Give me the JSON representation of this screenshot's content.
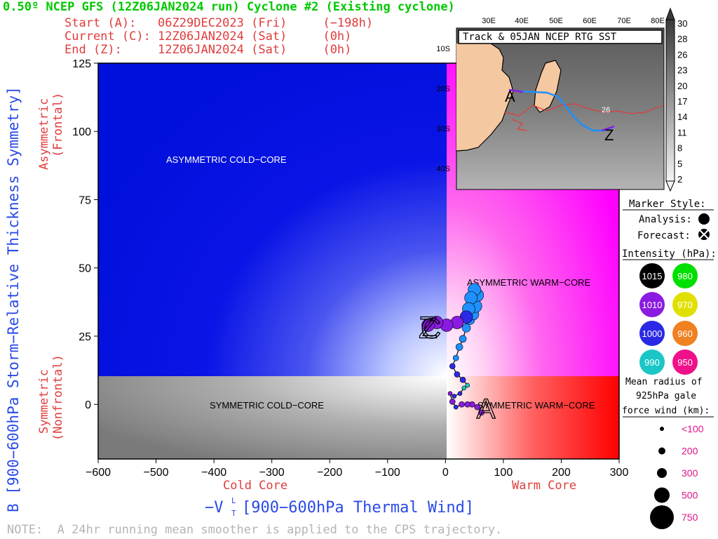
{
  "header": {
    "title": "0.50º NCEP GFS (12Z06JAN2024 run) Cyclone #2 (Existing cyclone)",
    "start_line": "Start (A):   06Z29DEC2023 (Fri)     (−198h)",
    "current_line": "Current (C): 12Z06JAN2024 (Sat)     (0h)",
    "end_line": "End (Z):     12Z06JAN2024 (Sat)     (0h)"
  },
  "axes": {
    "ylabel": "B [900−600hPa Storm−Relative Thickness Symmetry]",
    "xlabel": "−V  [900−600hPa Thermal Wind]",
    "xlabel_sub_top": "L",
    "xlabel_sub_bottom": "T",
    "asym_label_1": "Asymmetric",
    "asym_label_2": "(Frontal)",
    "sym_label_1": "Symmetric",
    "sym_label_2": "(Nonfrontal)",
    "cold_core": "Cold Core",
    "warm_core": "Warm Core"
  },
  "regions": {
    "asym_cold": "ASYMMETRIC COLD−CORE",
    "asym_warm": "ASYMMETRIC WARM−CORE",
    "sym_cold": "SYMMETRIC COLD−CORE",
    "sym_warm": "SYMMETRIC WARM−CORE"
  },
  "chart_data": {
    "type": "scatter",
    "xlim": [
      -600,
      300
    ],
    "ylim": [
      -20,
      125
    ],
    "x_ticks": [
      -600,
      -500,
      -400,
      -300,
      -200,
      -100,
      0,
      100,
      200,
      300
    ],
    "y_ticks": [
      0,
      25,
      50,
      75,
      100,
      125
    ],
    "track": [
      {
        "x": 62,
        "y": -3,
        "color": "#8a1be0",
        "r": 4
      },
      {
        "x": 55,
        "y": -1,
        "color": "#8a1be0",
        "r": 4
      },
      {
        "x": 46,
        "y": 0,
        "color": "#8a1be0",
        "r": 4
      },
      {
        "x": 38,
        "y": 0,
        "color": "#8a1be0",
        "r": 4
      },
      {
        "x": 28,
        "y": 0,
        "color": "#8a1be0",
        "r": 4
      },
      {
        "x": 18,
        "y": -1,
        "color": "#2a2ae6",
        "r": 3
      },
      {
        "x": 12,
        "y": 1,
        "color": "#8a1be0",
        "r": 4
      },
      {
        "x": 8,
        "y": 4,
        "color": "#8a1be0",
        "r": 3
      },
      {
        "x": 15,
        "y": 3,
        "color": "#2a2ae6",
        "r": 3
      },
      {
        "x": 25,
        "y": 4,
        "color": "#2a2ae6",
        "r": 3
      },
      {
        "x": 32,
        "y": 6,
        "color": "#1ac6c6",
        "r": 3
      },
      {
        "x": 38,
        "y": 7,
        "color": "#1ac6c6",
        "r": 3
      },
      {
        "x": 30,
        "y": 9,
        "color": "#2a2ae6",
        "r": 4
      },
      {
        "x": 20,
        "y": 11,
        "color": "#2a2ae6",
        "r": 4
      },
      {
        "x": 12,
        "y": 14,
        "color": "#2a2ae6",
        "r": 4
      },
      {
        "x": 18,
        "y": 17,
        "color": "#1e90ff",
        "r": 4
      },
      {
        "x": 24,
        "y": 21,
        "color": "#1e90ff",
        "r": 5
      },
      {
        "x": 30,
        "y": 24,
        "color": "#1e90ff",
        "r": 5
      },
      {
        "x": 36,
        "y": 28,
        "color": "#1e90ff",
        "r": 6
      },
      {
        "x": 42,
        "y": 31,
        "color": "#1e90ff",
        "r": 7
      },
      {
        "x": 48,
        "y": 33,
        "color": "#1e90ff",
        "r": 8
      },
      {
        "x": 52,
        "y": 36,
        "color": "#1e90ff",
        "r": 9
      },
      {
        "x": 55,
        "y": 40,
        "color": "#1e90ff",
        "r": 9
      },
      {
        "x": 50,
        "y": 42,
        "color": "#1e90ff",
        "r": 9
      },
      {
        "x": 44,
        "y": 39,
        "color": "#1e90ff",
        "r": 9
      },
      {
        "x": 40,
        "y": 35,
        "color": "#1e90ff",
        "r": 9
      },
      {
        "x": 36,
        "y": 32,
        "color": "#2a2ae6",
        "r": 9
      },
      {
        "x": 20,
        "y": 30,
        "color": "#8a1be0",
        "r": 9
      },
      {
        "x": 2,
        "y": 29,
        "color": "#8a1be0",
        "r": 9
      },
      {
        "x": -15,
        "y": 30,
        "color": "#8a1be0",
        "r": 9
      },
      {
        "x": -30,
        "y": 29,
        "color": "#8a1be0",
        "r": 9
      }
    ],
    "start_marker": {
      "label": "A",
      "x": 70,
      "y": -2
    },
    "end_marker": {
      "label": "Z",
      "x": -30,
      "y": 28
    },
    "current_marker": {
      "label": "C",
      "x": -30,
      "y": 28
    }
  },
  "inset": {
    "title": "Track & 05JAN NCEP RTG SST",
    "lon_labels": [
      "30E",
      "40E",
      "50E",
      "60E",
      "70E",
      "80E"
    ],
    "lat_labels": [
      "10S",
      "20S",
      "30S",
      "40S"
    ],
    "contour_label": "26",
    "colorbar": [
      "30",
      "28",
      "26",
      "23",
      "20",
      "17",
      "14",
      "11",
      "8",
      "5",
      "2"
    ]
  },
  "legend": {
    "marker_style": "Marker Style:",
    "analysis": "Analysis:",
    "forecast": "Forecast:",
    "intensity_title": "Intensity (hPa):",
    "intensity": [
      {
        "label": "1015",
        "color": "#000000",
        "text_color": "#ffffff"
      },
      {
        "label": "980",
        "color": "#00e000",
        "text_color": "#ffffff"
      },
      {
        "label": "1010",
        "color": "#8a1be0",
        "text_color": "#ffffff"
      },
      {
        "label": "970",
        "color": "#e0e000",
        "text_color": "#ffffff"
      },
      {
        "label": "1000",
        "color": "#2a2ae6",
        "text_color": "#ffffff"
      },
      {
        "label": "960",
        "color": "#f08020",
        "text_color": "#ffffff"
      },
      {
        "label": "990",
        "color": "#1ac6c6",
        "text_color": "#ffffff"
      },
      {
        "label": "950",
        "color": "#f0108a",
        "text_color": "#ffffff"
      }
    ],
    "radius_title_1": "Mean radius of",
    "radius_title_2": "925hPa gale",
    "radius_title_3": "force wind (km):",
    "radii": [
      {
        "label": "<100",
        "r": 3
      },
      {
        "label": "200",
        "r": 5
      },
      {
        "label": "300",
        "r": 7
      },
      {
        "label": "500",
        "r": 11
      },
      {
        "label": "750",
        "r": 17
      }
    ]
  },
  "footer": {
    "note": "NOTE:  A 24hr running mean smoother is applied to the CPS trajectory."
  }
}
